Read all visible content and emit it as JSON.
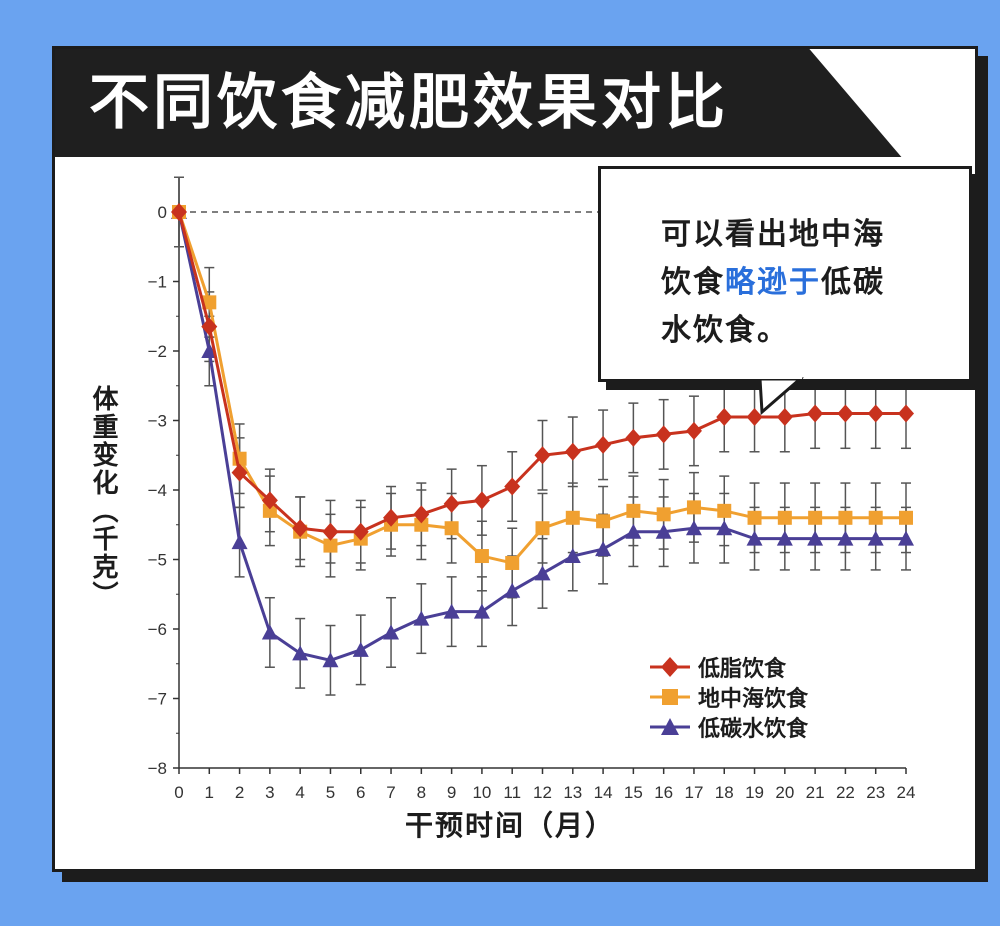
{
  "title": "不同饮食减肥效果对比",
  "callout": {
    "line1": "可以看出地中海",
    "line2_prefix": "饮食",
    "line2_highlight": "略逊于",
    "line2_suffix": "低碳",
    "line3": "水饮食。"
  },
  "colors": {
    "background": "#6aa3f0",
    "highlight": "#2a6fdb",
    "low_fat": "#c8321e",
    "mediterranean": "#f0a030",
    "low_carb": "#4a3f96"
  },
  "chart_data": {
    "type": "line",
    "ylabel": "体重变化（千克）",
    "xlabel": "干预时间（月）",
    "x": [
      0,
      1,
      2,
      3,
      4,
      5,
      6,
      7,
      8,
      9,
      10,
      11,
      12,
      13,
      14,
      15,
      16,
      17,
      18,
      19,
      20,
      21,
      22,
      23,
      24
    ],
    "xlim": [
      0,
      24
    ],
    "ylim": [
      -8,
      0
    ],
    "y_ticks": [
      0,
      -1,
      -2,
      -3,
      -4,
      -5,
      -6,
      -7,
      -8
    ],
    "grid": false,
    "legend_position": "bottom-right",
    "reference_line": 0,
    "series": [
      {
        "name": "低脂饮食",
        "marker": "diamond",
        "color": "#c8321e",
        "values": [
          0,
          -1.65,
          -3.75,
          -4.15,
          -4.55,
          -4.6,
          -4.6,
          -4.4,
          -4.35,
          -4.2,
          -4.15,
          -3.95,
          -3.5,
          -3.45,
          -3.35,
          -3.25,
          -3.2,
          -3.15,
          -2.95,
          -2.95,
          -2.95,
          -2.9,
          -2.9,
          -2.9,
          -2.9
        ],
        "error": [
          0.5,
          0.5,
          0.5,
          0.45,
          0.45,
          0.45,
          0.45,
          0.45,
          0.45,
          0.5,
          0.5,
          0.5,
          0.5,
          0.5,
          0.5,
          0.5,
          0.5,
          0.5,
          0.5,
          0.5,
          0.5,
          0.5,
          0.5,
          0.5,
          0.5
        ]
      },
      {
        "name": "地中海饮食",
        "marker": "square",
        "color": "#f0a030",
        "values": [
          0,
          -1.3,
          -3.55,
          -4.3,
          -4.6,
          -4.8,
          -4.7,
          -4.5,
          -4.5,
          -4.55,
          -4.95,
          -5.05,
          -4.55,
          -4.4,
          -4.45,
          -4.3,
          -4.35,
          -4.25,
          -4.3,
          -4.4,
          -4.4,
          -4.4,
          -4.4,
          -4.4,
          -4.4
        ],
        "error": [
          0.5,
          0.5,
          0.5,
          0.5,
          0.5,
          0.45,
          0.45,
          0.45,
          0.5,
          0.5,
          0.5,
          0.5,
          0.5,
          0.5,
          0.5,
          0.5,
          0.5,
          0.5,
          0.5,
          0.5,
          0.5,
          0.5,
          0.5,
          0.5,
          0.5
        ]
      },
      {
        "name": "低碳水饮食",
        "marker": "triangle",
        "color": "#4a3f96",
        "values": [
          0,
          -2.0,
          -4.75,
          -6.05,
          -6.35,
          -6.45,
          -6.3,
          -6.05,
          -5.85,
          -5.75,
          -5.75,
          -5.45,
          -5.2,
          -4.95,
          -4.85,
          -4.6,
          -4.6,
          -4.55,
          -4.55,
          -4.7,
          -4.7,
          -4.7,
          -4.7,
          -4.7,
          -4.7
        ],
        "error": [
          0.5,
          0.5,
          0.5,
          0.5,
          0.5,
          0.5,
          0.5,
          0.5,
          0.5,
          0.5,
          0.5,
          0.5,
          0.5,
          0.5,
          0.5,
          0.5,
          0.5,
          0.5,
          0.5,
          0.45,
          0.45,
          0.45,
          0.45,
          0.45,
          0.45
        ]
      }
    ]
  }
}
